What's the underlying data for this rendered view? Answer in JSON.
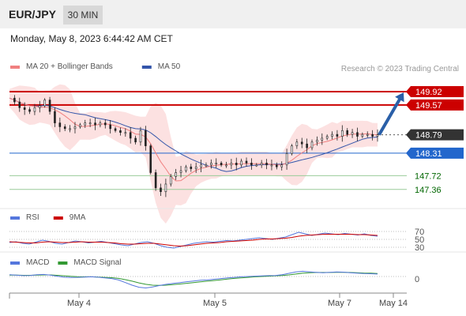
{
  "header": {
    "symbol": "EUR/JPY",
    "timeframe": "30 MIN"
  },
  "datetime": "Monday, May 8, 2023 6:44:42 AM CET",
  "copyright": "Research © 2023 Trading Central",
  "colors": {
    "resistance": "#cc0000",
    "current": "#333333",
    "pivot": "#2266cc",
    "support": "#006600",
    "support_line": "#99cc99",
    "ma20": "#f08080",
    "ma50": "#3355aa",
    "bollinger": "#fbd7d7",
    "rsi": "#5577dd",
    "rsi_ma": "#cc0000",
    "macd": "#5577dd",
    "macd_signal": "#339933",
    "arrow": "#2a5fa8"
  },
  "chart_data": [
    {
      "type": "candlestick",
      "legend": [
        {
          "name": "MA 20 + Bollinger Bands",
          "color": "#f08080"
        },
        {
          "name": "MA 50",
          "color": "#3355aa"
        }
      ],
      "ylim": [
        146.9,
        150.25
      ],
      "x_ticks": [
        "May 4",
        "May 5",
        "May 7",
        "May 14"
      ],
      "levels": [
        {
          "value": 149.92,
          "label": "149.92",
          "kind": "resistance"
        },
        {
          "value": 149.57,
          "label": "149.57",
          "kind": "resistance"
        },
        {
          "value": 148.79,
          "label": "148.79",
          "kind": "current"
        },
        {
          "value": 148.31,
          "label": "148.31",
          "kind": "pivot"
        },
        {
          "value": 147.72,
          "label": "147.72",
          "kind": "support"
        },
        {
          "value": 147.36,
          "label": "147.36",
          "kind": "support"
        }
      ],
      "close_path": [
        149.75,
        149.65,
        149.5,
        149.45,
        149.4,
        149.5,
        149.55,
        149.7,
        149.4,
        149.1,
        149.0,
        148.95,
        148.95,
        149.0,
        149.05,
        149.1,
        149.1,
        149.05,
        149.1,
        149.05,
        148.95,
        148.9,
        148.85,
        148.85,
        148.7,
        148.6,
        148.9,
        148.5,
        147.8,
        147.4,
        147.3,
        147.5,
        147.7,
        147.8,
        147.85,
        147.95,
        147.9,
        147.95,
        148.0,
        148.0,
        148.05,
        148.05,
        148.0,
        148.0,
        148.05,
        148.0,
        148.1,
        148.05,
        148.0,
        148.0,
        148.05,
        148.0,
        148.0,
        147.95,
        148.0,
        148.3,
        148.5,
        148.6,
        148.55,
        148.45,
        148.6,
        148.65,
        148.7,
        148.75,
        148.8,
        148.75,
        148.9,
        148.8,
        148.85,
        148.75,
        148.8,
        148.8,
        148.75,
        148.79
      ],
      "forecast_arrow": {
        "from": 148.79,
        "to": 149.92
      }
    },
    {
      "type": "line",
      "legend": [
        {
          "name": "RSI",
          "color": "#5577dd"
        },
        {
          "name": "9MA",
          "color": "#cc0000"
        }
      ],
      "ylim": [
        20,
        80
      ],
      "levels": [
        {
          "value": 70,
          "label": "70"
        },
        {
          "value": 50,
          "label": "50"
        },
        {
          "value": 30,
          "label": "30"
        }
      ],
      "rsi": [
        42,
        44,
        40,
        38,
        43,
        48,
        45,
        40,
        38,
        42,
        46,
        44,
        41,
        43,
        45,
        42,
        39,
        36,
        34,
        38,
        42,
        44,
        40,
        34,
        30,
        28,
        32,
        36,
        40,
        42,
        44,
        43,
        45,
        47,
        46,
        48,
        50,
        52,
        54,
        52,
        50,
        53,
        56,
        62,
        68,
        64,
        60,
        63,
        66,
        64,
        62,
        65,
        63,
        61,
        64,
        60,
        58
      ],
      "rsi_ma": [
        44,
        43,
        42,
        41,
        41,
        43,
        44,
        43,
        42,
        42,
        43,
        44,
        43,
        43,
        43,
        42,
        41,
        39,
        38,
        38,
        39,
        40,
        40,
        38,
        36,
        34,
        33,
        34,
        36,
        38,
        40,
        41,
        42,
        44,
        45,
        46,
        47,
        48,
        50,
        51,
        51,
        52,
        53,
        55,
        58,
        60,
        61,
        62,
        63,
        63,
        63,
        63,
        63,
        62,
        62,
        61,
        60
      ]
    },
    {
      "type": "line",
      "legend": [
        {
          "name": "MACD",
          "color": "#5577dd"
        },
        {
          "name": "MACD Signal",
          "color": "#339933"
        }
      ],
      "ylim": [
        -1,
        1
      ],
      "levels": [
        {
          "value": 0,
          "label": "0"
        }
      ],
      "macd": [
        0.1,
        0.08,
        0.05,
        0.06,
        0.1,
        0.12,
        0.08,
        0.02,
        -0.04,
        -0.06,
        -0.05,
        -0.03,
        -0.02,
        -0.04,
        -0.08,
        -0.12,
        -0.2,
        -0.35,
        -0.5,
        -0.62,
        -0.66,
        -0.6,
        -0.52,
        -0.45,
        -0.4,
        -0.35,
        -0.3,
        -0.26,
        -0.22,
        -0.2,
        -0.16,
        -0.12,
        -0.08,
        -0.05,
        -0.02,
        0.0,
        0.02,
        0.03,
        0.05,
        0.06,
        0.1,
        0.18,
        0.26,
        0.3,
        0.27,
        0.24,
        0.22,
        0.24,
        0.26,
        0.25,
        0.22,
        0.19,
        0.17,
        0.16,
        0.14
      ],
      "signal": [
        0.08,
        0.08,
        0.07,
        0.07,
        0.08,
        0.09,
        0.09,
        0.07,
        0.04,
        0.01,
        -0.01,
        -0.02,
        -0.02,
        -0.03,
        -0.05,
        -0.07,
        -0.11,
        -0.18,
        -0.27,
        -0.37,
        -0.45,
        -0.5,
        -0.51,
        -0.5,
        -0.47,
        -0.43,
        -0.39,
        -0.35,
        -0.31,
        -0.27,
        -0.23,
        -0.19,
        -0.15,
        -0.11,
        -0.08,
        -0.05,
        -0.02,
        0.0,
        0.02,
        0.04,
        0.06,
        0.09,
        0.14,
        0.19,
        0.22,
        0.23,
        0.23,
        0.23,
        0.24,
        0.24,
        0.23,
        0.22,
        0.2,
        0.19,
        0.17
      ]
    }
  ]
}
